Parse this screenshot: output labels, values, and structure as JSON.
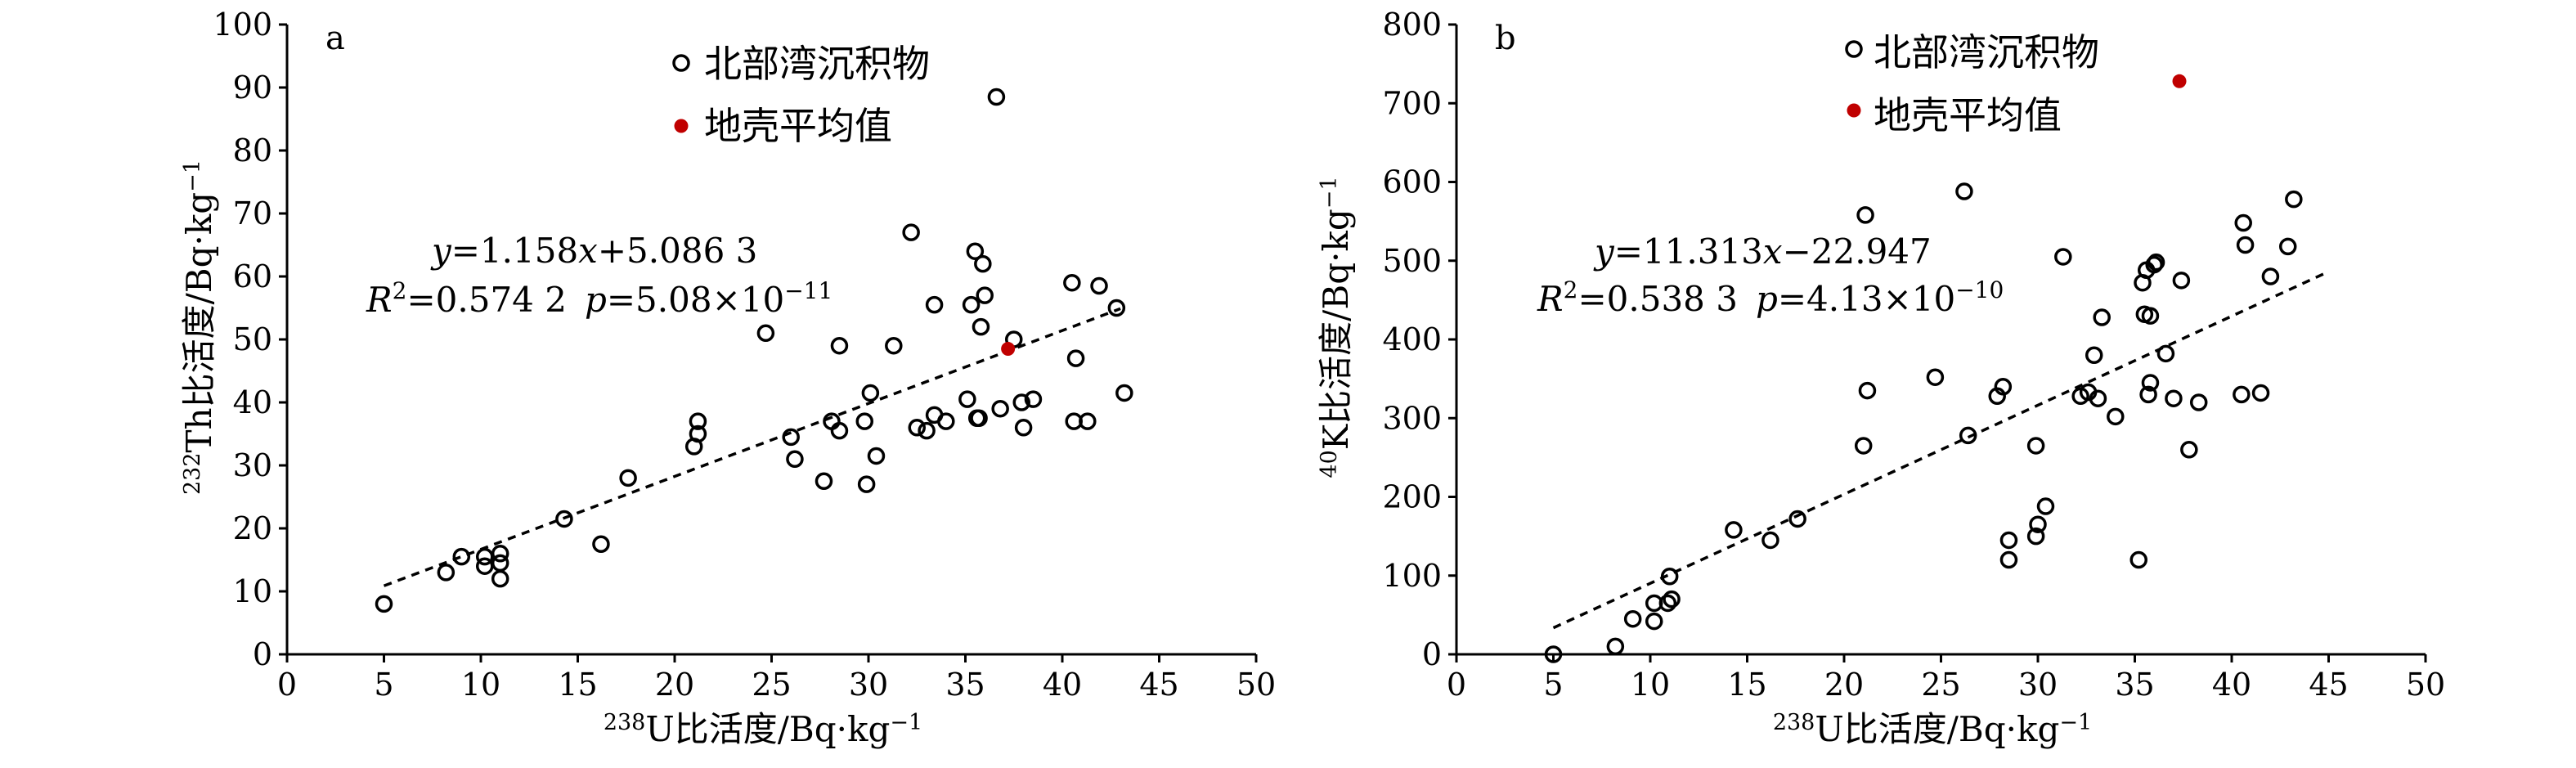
{
  "chart_data": [
    {
      "type": "scatter",
      "panel_label": "a",
      "xlabel": {
        "sup": "238",
        "text": "U比活度/Bq·kg",
        "sup2": "−1"
      },
      "ylabel": {
        "sup": "232",
        "text": "Th比活度/Bq·kg",
        "sup2": "−1"
      },
      "xlim": [
        0,
        50
      ],
      "x_step": 5,
      "ylim": [
        0,
        100
      ],
      "y_step": 10,
      "legend": [
        {
          "label": "北部湾沉积物",
          "marker": "open-circle",
          "color": "#000000"
        },
        {
          "label": "地壳平均值",
          "marker": "filled-circle",
          "color": "#c00000"
        }
      ],
      "equation": {
        "y": "y",
        "eq": "=1.158",
        "x": "x",
        "rest": "+5.086 3"
      },
      "stats": {
        "R": "R",
        "sup": "2",
        "r_val": "=0.574 2",
        "p": "p",
        "p_val": "=5.08×10",
        "p_exp": "−11"
      },
      "trendline": {
        "slope": 1.158,
        "intercept": 5.0863,
        "x_start": 5,
        "x_end": 43
      },
      "series": [
        {
          "points": [
            [
              5,
              8
            ],
            [
              8.2,
              13
            ],
            [
              9,
              15.5
            ],
            [
              10.2,
              14
            ],
            [
              10.2,
              15.5
            ],
            [
              11,
              12
            ],
            [
              11,
              14.5
            ],
            [
              11,
              16
            ],
            [
              14.3,
              21.5
            ],
            [
              16.2,
              17.5
            ],
            [
              17.6,
              28
            ],
            [
              21,
              33
            ],
            [
              21.2,
              35
            ],
            [
              21.2,
              37
            ],
            [
              24.7,
              51
            ],
            [
              26,
              34.5
            ],
            [
              26.2,
              31
            ],
            [
              27.7,
              27.5
            ],
            [
              28.1,
              37
            ],
            [
              28.5,
              35.5
            ],
            [
              28.5,
              49
            ],
            [
              29.8,
              37
            ],
            [
              29.9,
              27
            ],
            [
              30.1,
              41.5
            ],
            [
              30.4,
              31.5
            ],
            [
              31.3,
              49
            ],
            [
              32.2,
              67
            ],
            [
              32.5,
              36
            ],
            [
              33,
              35.5
            ],
            [
              33.4,
              55.5
            ],
            [
              33.4,
              38
            ],
            [
              34,
              37
            ],
            [
              35.1,
              40.5
            ],
            [
              35.3,
              55.5
            ],
            [
              35.5,
              64
            ],
            [
              35.6,
              37.5
            ],
            [
              35.7,
              37.5
            ],
            [
              35.8,
              52
            ],
            [
              35.9,
              62
            ],
            [
              36,
              57
            ],
            [
              36.6,
              88.5
            ],
            [
              36.8,
              39
            ],
            [
              37.5,
              50
            ],
            [
              37.9,
              40
            ],
            [
              38,
              36
            ],
            [
              38.5,
              40.5
            ],
            [
              40.5,
              59
            ],
            [
              40.6,
              37
            ],
            [
              40.7,
              47
            ],
            [
              41.3,
              37
            ],
            [
              41.9,
              58.5
            ],
            [
              42.8,
              55
            ],
            [
              43.2,
              41.5
            ]
          ]
        },
        {
          "points": [
            [
              37.2,
              48.5
            ]
          ]
        }
      ]
    },
    {
      "type": "scatter",
      "panel_label": "b",
      "xlabel": {
        "sup": "238",
        "text": "U比活度/Bq·kg",
        "sup2": "−1"
      },
      "ylabel": {
        "sup": "40",
        "text": "K比活度/Bq·kg",
        "sup2": "−1"
      },
      "xlim": [
        0,
        50
      ],
      "x_step": 5,
      "ylim": [
        0,
        800
      ],
      "y_step": 100,
      "legend": [
        {
          "label": "北部湾沉积物",
          "marker": "open-circle",
          "color": "#000000"
        },
        {
          "label": "地壳平均值",
          "marker": "filled-circle",
          "color": "#c00000"
        }
      ],
      "equation": {
        "y": "y",
        "eq": "=11.313",
        "x": "x",
        "rest": "−22.947"
      },
      "stats": {
        "R": "R",
        "sup": "2",
        "r_val": "=0.538 3",
        "p": "p",
        "p_val": "=4.13×10",
        "p_exp": "−10"
      },
      "trendline": {
        "slope": 11.313,
        "intercept": -22.947,
        "x_start": 5,
        "x_end": 45
      },
      "series": [
        {
          "points": [
            [
              5,
              0
            ],
            [
              8.2,
              10
            ],
            [
              9.1,
              45
            ],
            [
              10.2,
              42
            ],
            [
              10.2,
              65
            ],
            [
              10.9,
              65
            ],
            [
              11,
              99
            ],
            [
              11.1,
              70
            ],
            [
              14.3,
              158
            ],
            [
              16.2,
              145
            ],
            [
              17.6,
              172
            ],
            [
              21,
              265
            ],
            [
              21.2,
              335
            ],
            [
              21.1,
              558
            ],
            [
              24.7,
              352
            ],
            [
              26.2,
              588
            ],
            [
              26.4,
              278
            ],
            [
              27.9,
              328
            ],
            [
              28.2,
              340
            ],
            [
              28.5,
              145
            ],
            [
              28.5,
              120
            ],
            [
              29.9,
              265
            ],
            [
              29.9,
              150
            ],
            [
              30,
              165
            ],
            [
              30.4,
              188
            ],
            [
              31.3,
              505
            ],
            [
              32.2,
              328
            ],
            [
              32.6,
              333
            ],
            [
              32.9,
              380
            ],
            [
              33.1,
              325
            ],
            [
              33.3,
              428
            ],
            [
              34,
              302
            ],
            [
              35.2,
              120
            ],
            [
              35.4,
              472
            ],
            [
              35.5,
              432
            ],
            [
              35.6,
              488
            ],
            [
              35.7,
              330
            ],
            [
              35.8,
              345
            ],
            [
              35.8,
              430
            ],
            [
              36,
              495
            ],
            [
              36.1,
              498
            ],
            [
              36.6,
              382
            ],
            [
              37,
              325
            ],
            [
              37.4,
              475
            ],
            [
              37.8,
              260
            ],
            [
              38.3,
              320
            ],
            [
              40.5,
              330
            ],
            [
              40.6,
              548
            ],
            [
              40.7,
              520
            ],
            [
              41.5,
              332
            ],
            [
              42,
              480
            ],
            [
              42.9,
              518
            ],
            [
              43.2,
              578
            ]
          ]
        },
        {
          "points": [
            [
              37.3,
              728
            ]
          ]
        }
      ]
    }
  ]
}
